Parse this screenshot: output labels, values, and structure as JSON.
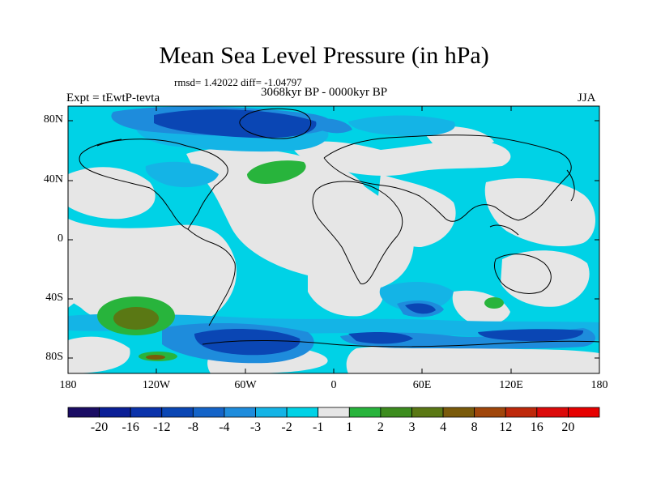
{
  "figure": {
    "title": "Mean Sea Level Pressure (in hPa)",
    "stats": "rmsd= 1.42022  diff= -1.04797",
    "period": "3068kyr BP - 0000kyr BP",
    "experiment": "Expt = tEwtP-tevta",
    "season": "JJA"
  },
  "axes": {
    "y_ticks": [
      "80N",
      "40N",
      "0",
      "40S",
      "80S"
    ],
    "x_ticks": [
      "180",
      "120W",
      "60W",
      "0",
      "60E",
      "120E",
      "180"
    ]
  },
  "colorbar": {
    "labels": [
      "-20",
      "-16",
      "-12",
      "-8",
      "-4",
      "-3",
      "-2",
      "-1",
      "1",
      "2",
      "3",
      "4",
      "8",
      "12",
      "16",
      "20"
    ],
    "colors": [
      "#1a0c64",
      "#0a1e96",
      "#0a32aa",
      "#0a46b4",
      "#1464c8",
      "#1e8cdc",
      "#14b4e6",
      "#00d2e6",
      "#e6e6e6",
      "#28b43c",
      "#3c8c1e",
      "#5a7814",
      "#7a5a0a",
      "#a0460a",
      "#be280a",
      "#dc0a0a",
      "#e60000"
    ]
  },
  "palette": {
    "ocean": "#00d2e6",
    "land_neutral": "#e6e6e6",
    "mid_blue": "#1e8cdc",
    "deep_blue": "#0a46b4",
    "green": "#28b43c",
    "olive": "#5a7814",
    "coast": "#000000"
  }
}
